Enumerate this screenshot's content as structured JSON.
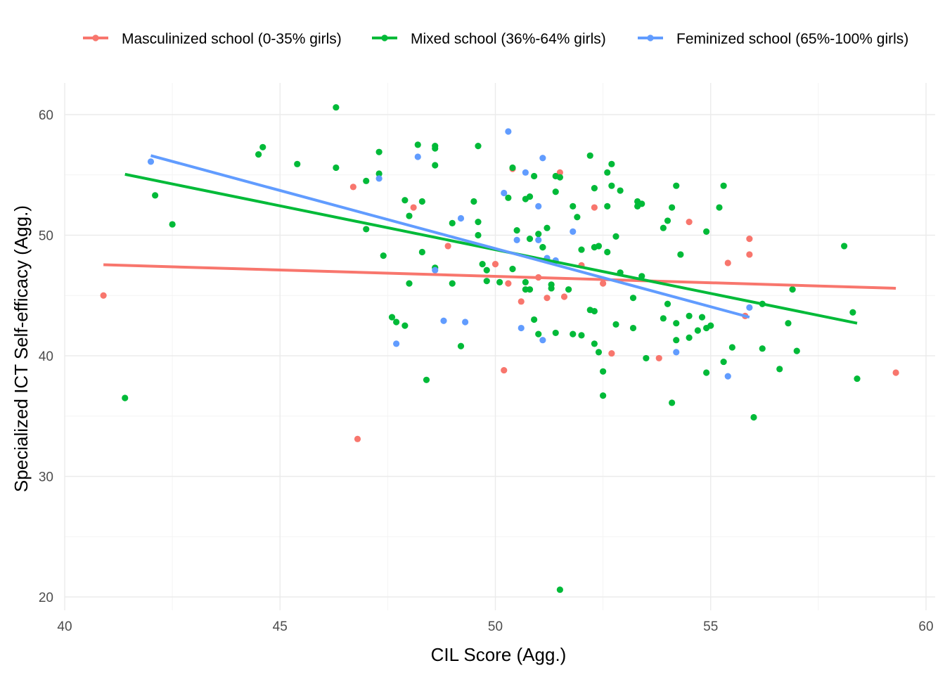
{
  "chart_data": {
    "type": "scatter",
    "title": "",
    "xlabel": "CIL Score (Agg.)",
    "ylabel": "Specialized ICT Self-efficacy (Agg.)",
    "xlim": [
      40,
      60
    ],
    "ylim": [
      20,
      62.5
    ],
    "x_ticks": [
      "40",
      "45",
      "50",
      "55",
      "60"
    ],
    "y_ticks": [
      "20",
      "30",
      "40",
      "50",
      "60"
    ],
    "grid": true,
    "legend_position": "top",
    "series": [
      {
        "name": "Masculinized school (0-35% girls)",
        "color": "#F8766D",
        "points": [
          [
            40.9,
            45.0
          ],
          [
            46.7,
            54.0
          ],
          [
            46.8,
            33.1
          ],
          [
            48.1,
            52.3
          ],
          [
            48.9,
            49.1
          ],
          [
            50.0,
            47.6
          ],
          [
            50.2,
            38.8
          ],
          [
            50.3,
            46.0
          ],
          [
            50.4,
            55.5
          ],
          [
            50.6,
            44.5
          ],
          [
            51.0,
            46.5
          ],
          [
            51.2,
            44.8
          ],
          [
            51.5,
            55.2
          ],
          [
            51.6,
            44.9
          ],
          [
            52.0,
            47.5
          ],
          [
            52.3,
            52.3
          ],
          [
            52.5,
            46.0
          ],
          [
            52.7,
            40.2
          ],
          [
            53.8,
            39.8
          ],
          [
            54.5,
            51.1
          ],
          [
            55.4,
            47.7
          ],
          [
            55.8,
            43.3
          ],
          [
            55.9,
            48.4
          ],
          [
            55.9,
            49.7
          ],
          [
            59.3,
            38.6
          ]
        ],
        "trend": {
          "x": [
            40.9,
            59.3
          ],
          "y": [
            47.55,
            45.6
          ]
        }
      },
      {
        "name": "Mixed school (36%-64% girls)",
        "color": "#00BA38",
        "points": [
          [
            41.4,
            36.5
          ],
          [
            42.1,
            53.3
          ],
          [
            42.5,
            50.9
          ],
          [
            44.5,
            56.7
          ],
          [
            44.6,
            57.3
          ],
          [
            45.4,
            55.9
          ],
          [
            46.3,
            60.6
          ],
          [
            46.3,
            55.6
          ],
          [
            47.0,
            54.5
          ],
          [
            47.0,
            50.5
          ],
          [
            47.3,
            56.9
          ],
          [
            47.3,
            55.1
          ],
          [
            47.4,
            48.3
          ],
          [
            47.6,
            43.2
          ],
          [
            47.7,
            42.8
          ],
          [
            47.9,
            52.9
          ],
          [
            47.9,
            42.5
          ],
          [
            48.0,
            51.6
          ],
          [
            48.0,
            46.0
          ],
          [
            48.2,
            57.5
          ],
          [
            48.3,
            52.8
          ],
          [
            48.3,
            48.6
          ],
          [
            48.4,
            38.0
          ],
          [
            48.6,
            57.4
          ],
          [
            48.6,
            57.2
          ],
          [
            48.6,
            55.8
          ],
          [
            48.6,
            47.3
          ],
          [
            49.0,
            51.0
          ],
          [
            49.0,
            46.0
          ],
          [
            49.2,
            40.8
          ],
          [
            49.5,
            52.8
          ],
          [
            49.6,
            57.4
          ],
          [
            49.6,
            51.1
          ],
          [
            49.6,
            50.0
          ],
          [
            49.7,
            47.6
          ],
          [
            49.8,
            47.1
          ],
          [
            49.8,
            46.2
          ],
          [
            50.1,
            46.1
          ],
          [
            50.3,
            53.1
          ],
          [
            50.4,
            55.6
          ],
          [
            50.5,
            50.4
          ],
          [
            50.4,
            47.2
          ],
          [
            50.7,
            53.0
          ],
          [
            50.7,
            46.1
          ],
          [
            50.7,
            45.5
          ],
          [
            50.8,
            53.2
          ],
          [
            50.8,
            49.7
          ],
          [
            50.8,
            45.5
          ],
          [
            50.9,
            54.9
          ],
          [
            50.9,
            43.0
          ],
          [
            51.0,
            41.8
          ],
          [
            51.0,
            50.1
          ],
          [
            51.1,
            49.0
          ],
          [
            51.1,
            49.0
          ],
          [
            51.2,
            50.6
          ],
          [
            51.3,
            45.6
          ],
          [
            51.3,
            45.9
          ],
          [
            51.4,
            54.9
          ],
          [
            51.4,
            53.6
          ],
          [
            51.4,
            41.9
          ],
          [
            51.5,
            54.8
          ],
          [
            51.5,
            20.6
          ],
          [
            51.7,
            45.5
          ],
          [
            51.8,
            52.4
          ],
          [
            51.8,
            41.8
          ],
          [
            51.9,
            51.5
          ],
          [
            52.0,
            41.7
          ],
          [
            52.0,
            48.8
          ],
          [
            52.2,
            56.6
          ],
          [
            52.2,
            43.8
          ],
          [
            52.3,
            41.0
          ],
          [
            52.3,
            49.0
          ],
          [
            52.3,
            43.7
          ],
          [
            52.3,
            53.9
          ],
          [
            52.4,
            40.3
          ],
          [
            52.4,
            49.1
          ],
          [
            52.5,
            38.7
          ],
          [
            52.5,
            36.7
          ],
          [
            52.6,
            55.2
          ],
          [
            52.6,
            52.4
          ],
          [
            52.6,
            48.6
          ],
          [
            52.7,
            55.9
          ],
          [
            52.7,
            54.1
          ],
          [
            52.8,
            42.6
          ],
          [
            52.8,
            49.9
          ],
          [
            52.9,
            53.7
          ],
          [
            52.9,
            46.9
          ],
          [
            53.2,
            44.8
          ],
          [
            53.2,
            42.3
          ],
          [
            53.3,
            52.8
          ],
          [
            53.3,
            52.4
          ],
          [
            53.4,
            52.6
          ],
          [
            53.4,
            46.6
          ],
          [
            53.5,
            39.8
          ],
          [
            53.9,
            43.1
          ],
          [
            53.9,
            50.6
          ],
          [
            54.0,
            51.2
          ],
          [
            54.0,
            44.3
          ],
          [
            54.1,
            36.1
          ],
          [
            54.1,
            52.3
          ],
          [
            54.2,
            41.3
          ],
          [
            54.2,
            42.7
          ],
          [
            54.2,
            54.1
          ],
          [
            54.3,
            48.4
          ],
          [
            54.5,
            43.3
          ],
          [
            54.5,
            41.5
          ],
          [
            54.7,
            42.1
          ],
          [
            54.8,
            43.2
          ],
          [
            54.9,
            50.3
          ],
          [
            54.9,
            42.3
          ],
          [
            54.9,
            38.6
          ],
          [
            55.0,
            42.5
          ],
          [
            55.2,
            52.3
          ],
          [
            55.3,
            54.1
          ],
          [
            55.3,
            39.5
          ],
          [
            55.5,
            40.7
          ],
          [
            56.0,
            34.9
          ],
          [
            56.2,
            44.3
          ],
          [
            56.2,
            40.6
          ],
          [
            56.6,
            38.9
          ],
          [
            56.8,
            42.7
          ],
          [
            56.9,
            45.5
          ],
          [
            57.0,
            40.4
          ],
          [
            58.1,
            49.1
          ],
          [
            58.3,
            43.6
          ],
          [
            58.4,
            38.1
          ]
        ],
        "trend": {
          "x": [
            41.4,
            58.4
          ],
          "y": [
            55.05,
            42.7
          ]
        }
      },
      {
        "name": "Feminized school (65%-100% girls)",
        "color": "#619CFF",
        "points": [
          [
            42.0,
            56.1
          ],
          [
            47.3,
            54.7
          ],
          [
            47.7,
            41.0
          ],
          [
            48.2,
            56.5
          ],
          [
            48.6,
            47.1
          ],
          [
            48.8,
            42.9
          ],
          [
            49.2,
            51.4
          ],
          [
            49.3,
            42.8
          ],
          [
            50.2,
            53.5
          ],
          [
            50.3,
            58.6
          ],
          [
            50.5,
            49.6
          ],
          [
            50.6,
            42.3
          ],
          [
            50.7,
            55.2
          ],
          [
            51.0,
            52.4
          ],
          [
            51.0,
            49.6
          ],
          [
            51.1,
            41.3
          ],
          [
            51.1,
            56.4
          ],
          [
            51.2,
            48.1
          ],
          [
            51.4,
            47.9
          ],
          [
            51.8,
            50.3
          ],
          [
            54.2,
            40.3
          ],
          [
            55.4,
            38.3
          ],
          [
            55.9,
            44.0
          ]
        ],
        "trend": {
          "x": [
            42.0,
            55.9
          ],
          "y": [
            56.6,
            43.2
          ]
        }
      }
    ]
  }
}
